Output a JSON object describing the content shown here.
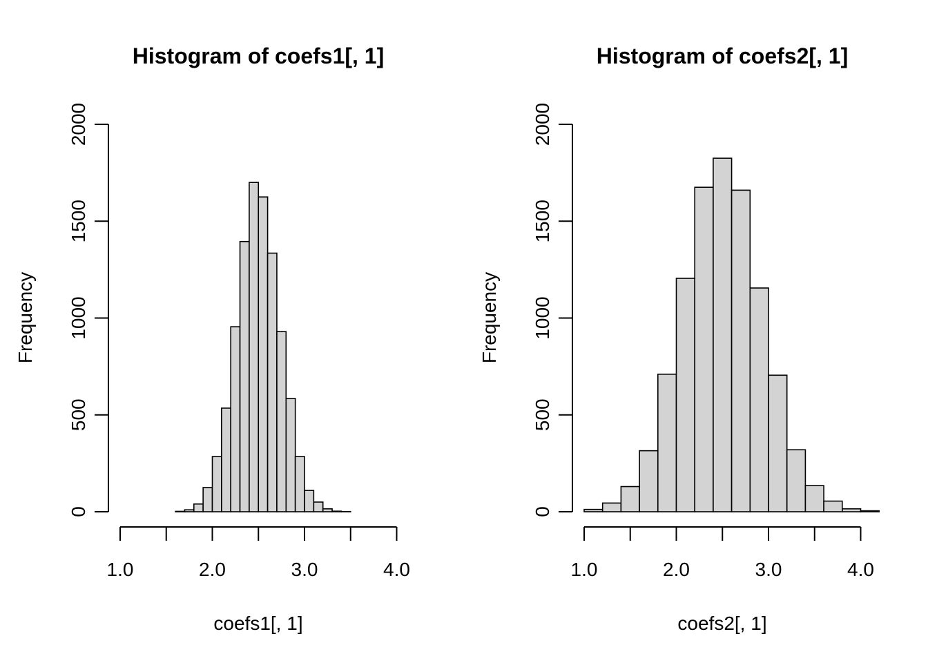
{
  "chart_data": [
    {
      "type": "bar",
      "title": "Histogram of coefs1[, 1]",
      "xlabel": "coefs1[, 1]",
      "ylabel": "Frequency",
      "xlim": [
        1.0,
        4.0
      ],
      "ylim": [
        0,
        2000
      ],
      "x_ticks": [
        1.0,
        1.5,
        2.0,
        2.5,
        3.0,
        3.5,
        4.0
      ],
      "x_tick_labels": [
        "1.0",
        "",
        "2.0",
        "",
        "3.0",
        "",
        "4.0"
      ],
      "y_ticks": [
        0,
        500,
        1000,
        1500,
        2000
      ],
      "y_tick_labels": [
        "0",
        "500",
        "1000",
        "1500",
        "2000"
      ],
      "bin_width": 0.1,
      "bins_start": [
        1.6,
        1.7,
        1.8,
        1.9,
        2.0,
        2.1,
        2.2,
        2.3,
        2.4,
        2.5,
        2.6,
        2.7,
        2.8,
        2.9,
        3.0,
        3.1,
        3.2,
        3.3,
        3.4
      ],
      "values": [
        2,
        10,
        40,
        125,
        285,
        535,
        955,
        1395,
        1700,
        1625,
        1335,
        930,
        585,
        285,
        110,
        50,
        15,
        3,
        1
      ],
      "bar_color": "#d3d3d3",
      "grid": false
    },
    {
      "type": "bar",
      "title": "Histogram of coefs2[, 1]",
      "xlabel": "coefs2[, 1]",
      "ylabel": "Frequency",
      "xlim": [
        1.0,
        4.0
      ],
      "ylim": [
        0,
        2000
      ],
      "x_ticks": [
        1.0,
        1.5,
        2.0,
        2.5,
        3.0,
        3.5,
        4.0
      ],
      "x_tick_labels": [
        "1.0",
        "",
        "2.0",
        "",
        "3.0",
        "",
        "4.0"
      ],
      "y_ticks": [
        0,
        500,
        1000,
        1500,
        2000
      ],
      "y_tick_labels": [
        "0",
        "500",
        "1000",
        "1500",
        "2000"
      ],
      "bin_width": 0.2,
      "bins_start": [
        1.0,
        1.2,
        1.4,
        1.6,
        1.8,
        2.0,
        2.2,
        2.4,
        2.6,
        2.8,
        3.0,
        3.2,
        3.4,
        3.6,
        3.8,
        4.0
      ],
      "values": [
        12,
        45,
        130,
        315,
        710,
        1205,
        1675,
        1825,
        1660,
        1155,
        705,
        320,
        135,
        55,
        15,
        5
      ],
      "bar_color": "#d3d3d3",
      "grid": false
    }
  ]
}
